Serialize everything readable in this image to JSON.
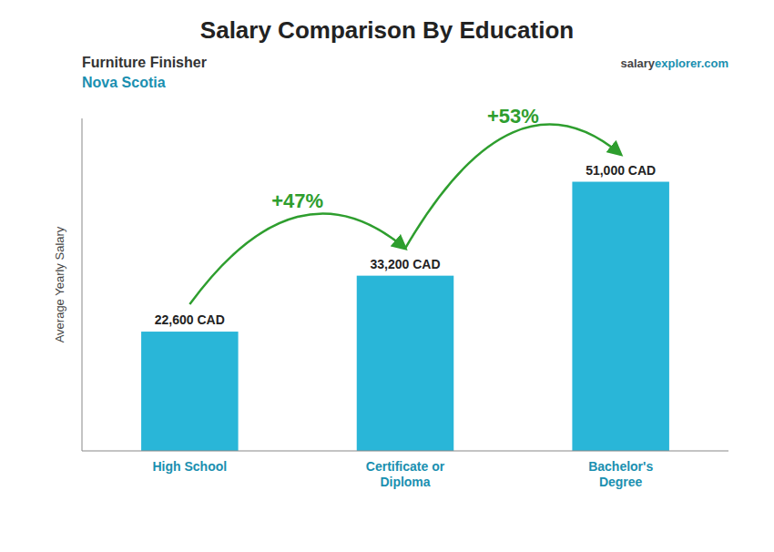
{
  "chart_data": {
    "type": "bar",
    "title": "Salary Comparison By Education",
    "subtitle": [
      "Furniture Finisher",
      "Nova Scotia"
    ],
    "y_label": "Average Yearly Salary",
    "watermark": [
      "salary",
      "explorer.com"
    ],
    "categories": [
      "High School",
      "Certificate or\nDiploma",
      "Bachelor's\nDegree"
    ],
    "values": [
      22600,
      33200,
      51000
    ],
    "value_labels": [
      "22,600 CAD",
      "33,200 CAD",
      "51,000 CAD"
    ],
    "data_labels": true,
    "annotations": [
      "+47%",
      "+53%"
    ],
    "color": "#29B6D8",
    "ylim": [
      0,
      63000
    ],
    "yticks": [],
    "grid": false,
    "tick_labels": "x"
  }
}
